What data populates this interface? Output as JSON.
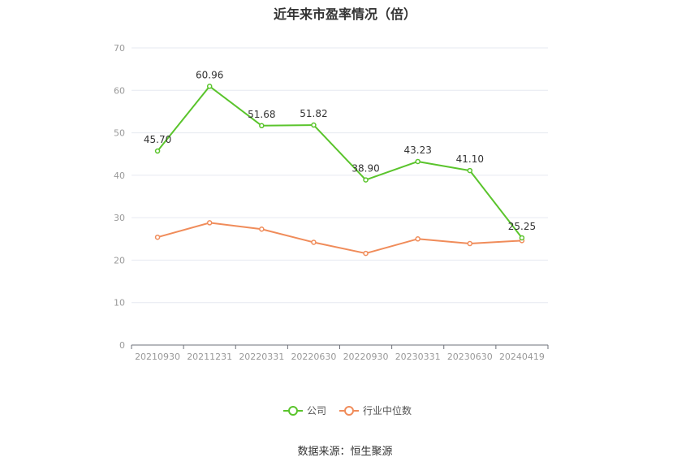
{
  "chart_data": {
    "type": "line",
    "title": "近年来市盈率情况（倍）",
    "categories": [
      "20210930",
      "20211231",
      "20220331",
      "20220630",
      "20220930",
      "20230331",
      "20230630",
      "20240419"
    ],
    "series": [
      {
        "name": "公司",
        "color": "#5ac42c",
        "values": [
          45.7,
          60.96,
          51.68,
          51.82,
          38.9,
          43.23,
          41.1,
          25.25
        ],
        "labels": [
          "45.70",
          "60.96",
          "51.68",
          "51.82",
          "38.90",
          "43.23",
          "41.10",
          "25.25"
        ]
      },
      {
        "name": "行业中位数",
        "color": "#f08c5a",
        "values": [
          25.4,
          28.8,
          27.3,
          24.2,
          21.6,
          25.0,
          23.9,
          24.6
        ]
      }
    ],
    "yticks": [
      "0",
      "10",
      "20",
      "30",
      "40",
      "50",
      "60",
      "70"
    ],
    "ylim": [
      0,
      70
    ],
    "grid": true,
    "legend_position": "bottom"
  },
  "source": "数据来源：恒生聚源"
}
